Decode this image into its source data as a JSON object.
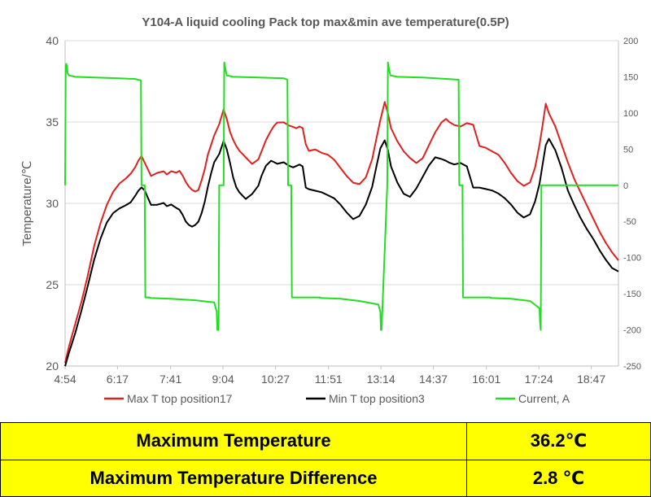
{
  "chart_data": {
    "type": "line",
    "title": "Y104-A liquid cooling Pack top max&min ave temperature(0.5P)",
    "ylabel": "Temperature/℃",
    "xlabel": "",
    "ylim": [
      20,
      40
    ],
    "y2lim": [
      -250,
      200
    ],
    "x_range": [
      294,
      1170
    ],
    "yticks": [
      "20",
      "25",
      "30",
      "35",
      "40"
    ],
    "y2ticks": [
      "-250",
      "-200",
      "-150",
      "-100",
      "-50",
      "0",
      "50",
      "100",
      "150",
      "200"
    ],
    "xticks": [
      {
        "label": "4:54",
        "min": 294
      },
      {
        "label": "6:17",
        "min": 377
      },
      {
        "label": "7:41",
        "min": 461
      },
      {
        "label": "9:04",
        "min": 544
      },
      {
        "label": "10:27",
        "min": 627
      },
      {
        "label": "11:51",
        "min": 711
      },
      {
        "label": "13:14",
        "min": 794
      },
      {
        "label": "14:37",
        "min": 877
      },
      {
        "label": "16:01",
        "min": 961
      },
      {
        "label": "17:24",
        "min": 1044
      },
      {
        "label": "18:47",
        "min": 1127
      }
    ],
    "series": [
      {
        "name": "Max T top position17",
        "color": "#e02020",
        "axis": "left",
        "x": [
          294,
          300,
          310,
          320,
          330,
          340,
          350,
          360,
          370,
          380,
          390,
          398,
          405,
          410,
          415,
          420,
          430,
          440,
          450,
          455,
          462,
          470,
          475,
          480,
          485,
          490,
          495,
          500,
          505,
          510,
          515,
          520,
          525,
          530,
          538,
          545,
          550,
          555,
          560,
          565,
          570,
          575,
          580,
          590,
          600,
          605,
          612,
          620,
          625,
          630,
          640,
          648,
          655,
          660,
          665,
          670,
          675,
          680,
          690,
          700,
          710,
          720,
          730,
          740,
          750,
          760,
          770,
          780,
          787,
          793,
          800,
          805,
          810,
          820,
          830,
          840,
          850,
          860,
          870,
          880,
          890,
          897,
          902,
          910,
          920,
          930,
          940,
          950,
          960,
          970,
          980,
          990,
          1000,
          1010,
          1020,
          1030,
          1038,
          1045,
          1050,
          1055,
          1060,
          1070,
          1080,
          1090,
          1100,
          1110,
          1120,
          1130,
          1140,
          1150,
          1160,
          1170
        ],
        "values": [
          20.2,
          21.2,
          22.6,
          24.0,
          25.6,
          27.4,
          28.8,
          29.9,
          30.7,
          31.2,
          31.5,
          31.8,
          32.2,
          32.6,
          32.9,
          32.5,
          31.7,
          31.9,
          32.0,
          31.8,
          32.0,
          31.9,
          32.0,
          31.7,
          31.3,
          31.0,
          30.8,
          30.7,
          30.8,
          31.4,
          32.1,
          33.0,
          33.6,
          34.2,
          34.9,
          35.8,
          35.2,
          34.4,
          33.9,
          33.5,
          33.2,
          33.0,
          32.8,
          32.4,
          32.7,
          33.2,
          33.9,
          34.5,
          34.8,
          35.0,
          35.0,
          34.8,
          34.7,
          34.6,
          34.7,
          34.6,
          33.6,
          33.2,
          33.3,
          33.1,
          33.0,
          32.7,
          32.2,
          31.7,
          31.3,
          31.2,
          31.6,
          32.7,
          34.0,
          35.1,
          36.2,
          35.5,
          34.6,
          33.8,
          33.2,
          32.8,
          32.5,
          32.8,
          33.6,
          34.4,
          35.0,
          35.2,
          35.0,
          34.8,
          34.7,
          34.9,
          34.8,
          33.5,
          33.4,
          33.2,
          33.0,
          32.5,
          31.9,
          31.4,
          31.1,
          31.3,
          32.2,
          33.6,
          34.8,
          36.1,
          35.5,
          34.7,
          33.6,
          32.5,
          31.5,
          30.7,
          29.9,
          29.1,
          28.3,
          27.6,
          27.0,
          26.5
        ]
      },
      {
        "name": "Min T top position3",
        "color": "#000000",
        "axis": "left",
        "x": [
          294,
          300,
          310,
          320,
          330,
          340,
          350,
          360,
          370,
          380,
          390,
          398,
          405,
          410,
          415,
          420,
          430,
          440,
          450,
          455,
          462,
          470,
          475,
          480,
          485,
          490,
          495,
          500,
          505,
          510,
          515,
          520,
          525,
          530,
          538,
          545,
          550,
          555,
          560,
          565,
          570,
          575,
          580,
          590,
          600,
          605,
          612,
          620,
          625,
          630,
          640,
          648,
          655,
          660,
          665,
          670,
          675,
          680,
          690,
          700,
          710,
          720,
          730,
          740,
          750,
          760,
          770,
          780,
          787,
          793,
          800,
          805,
          810,
          820,
          830,
          840,
          850,
          860,
          870,
          880,
          890,
          897,
          902,
          910,
          920,
          930,
          940,
          950,
          960,
          970,
          980,
          990,
          1000,
          1010,
          1020,
          1030,
          1038,
          1045,
          1050,
          1055,
          1060,
          1070,
          1080,
          1090,
          1100,
          1110,
          1120,
          1130,
          1140,
          1150,
          1160,
          1170
        ],
        "values": [
          20.0,
          20.8,
          22.0,
          23.4,
          24.9,
          26.5,
          27.8,
          28.8,
          29.4,
          29.7,
          29.9,
          30.1,
          30.5,
          30.8,
          31.0,
          30.8,
          29.9,
          29.9,
          30.0,
          29.8,
          29.9,
          29.7,
          29.6,
          29.3,
          28.9,
          28.7,
          28.6,
          28.7,
          28.9,
          29.4,
          30.1,
          31.0,
          31.8,
          32.5,
          33.0,
          33.8,
          33.3,
          32.5,
          31.6,
          31.0,
          30.7,
          30.5,
          30.3,
          30.6,
          31.1,
          31.7,
          32.3,
          32.6,
          32.5,
          32.4,
          32.5,
          32.3,
          32.2,
          32.3,
          32.4,
          32.3,
          31.0,
          30.9,
          30.8,
          30.7,
          30.5,
          30.3,
          29.9,
          29.4,
          29.0,
          29.2,
          29.9,
          31.0,
          32.3,
          33.4,
          33.9,
          33.3,
          32.3,
          31.3,
          30.6,
          30.4,
          30.9,
          31.6,
          32.3,
          32.8,
          32.7,
          32.6,
          32.5,
          32.4,
          32.5,
          32.3,
          31.0,
          31.0,
          30.9,
          30.8,
          30.6,
          30.3,
          29.9,
          29.4,
          29.1,
          29.3,
          30.1,
          31.2,
          32.4,
          33.6,
          34.0,
          33.3,
          32.2,
          30.8,
          29.9,
          29.1,
          28.4,
          27.8,
          27.1,
          26.5,
          26.0,
          25.8
        ]
      },
      {
        "name": "Current, A",
        "color": "#22dd22",
        "axis": "right",
        "x": [
          294,
          295,
          296,
          298,
          300,
          310,
          340,
          380,
          405,
          414,
          415,
          420,
          421,
          425,
          426,
          430,
          460,
          500,
          530,
          534,
          535,
          537,
          538,
          545,
          546,
          548,
          550,
          560,
          600,
          640,
          646,
          647,
          652,
          653,
          695,
          696,
          700,
          730,
          760,
          790,
          793,
          794,
          795,
          804,
          805,
          807,
          809,
          820,
          860,
          900,
          917,
          918,
          923,
          924,
          965,
          966,
          970,
          1000,
          1030,
          1045,
          1046,
          1047,
          1048,
          1170
        ],
        "values": [
          0,
          165,
          168,
          155,
          152,
          150,
          149,
          148,
          147,
          145,
          0,
          0,
          -155,
          -155,
          -155,
          -156,
          -157,
          -159,
          -162,
          -175,
          -200,
          -200,
          0,
          0,
          170,
          160,
          152,
          150,
          149,
          148,
          146,
          0,
          0,
          -155,
          -155,
          -155,
          -156,
          -157,
          -160,
          -165,
          -175,
          -200,
          -200,
          0,
          170,
          160,
          152,
          150,
          149,
          147,
          146,
          0,
          0,
          -155,
          -155,
          -155,
          -156,
          -157,
          -160,
          -170,
          -190,
          -200,
          0,
          0
        ]
      }
    ]
  },
  "summary": {
    "rows": [
      {
        "label": "Maximum Temperature",
        "value": "36.2℃"
      },
      {
        "label": "Maximum Temperature Difference",
        "value": "2.8 ℃"
      }
    ]
  }
}
